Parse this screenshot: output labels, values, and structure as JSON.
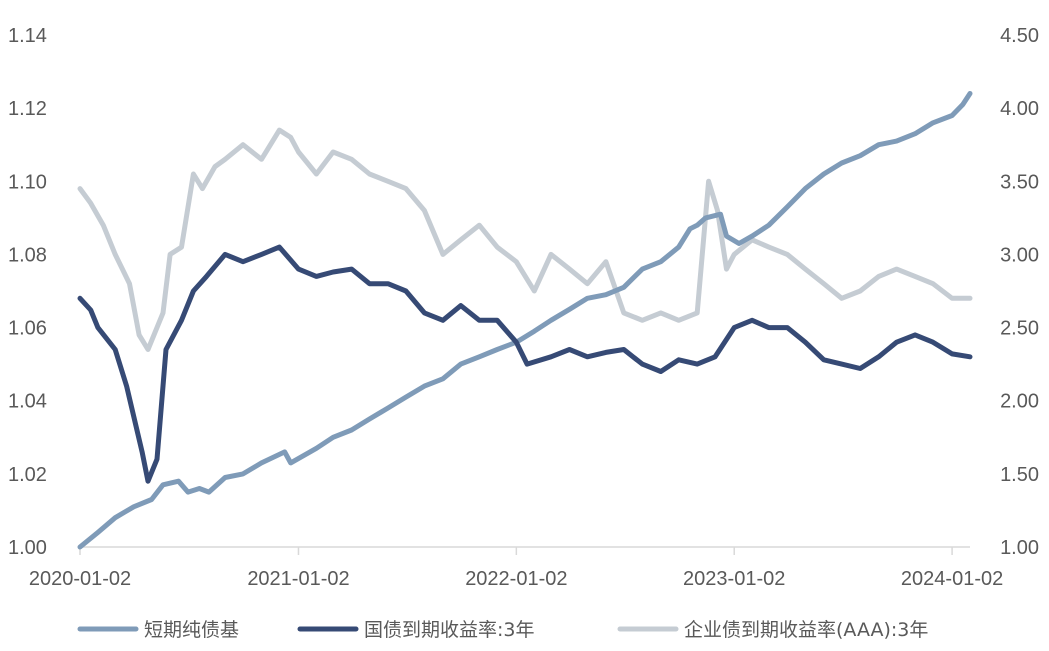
{
  "chart_data": {
    "type": "line",
    "x_ticks": [
      "2020-01-02",
      "2021-01-02",
      "2022-01-02",
      "2023-01-02",
      "2024-01-02"
    ],
    "y_left": {
      "ticks": [
        "1.00",
        "1.02",
        "1.04",
        "1.06",
        "1.08",
        "1.10",
        "1.12",
        "1.14"
      ],
      "range": [
        1.0,
        1.14
      ]
    },
    "y_right": {
      "ticks": [
        "1.00",
        "1.50",
        "2.00",
        "2.50",
        "3.00",
        "3.50",
        "4.00",
        "4.50"
      ],
      "range": [
        1.0,
        4.5
      ]
    },
    "grid": false,
    "legend_position": "bottom",
    "series": [
      {
        "name": "短期纯债基",
        "axis": "left",
        "color": "#7f9bb8",
        "points": [
          [
            "2020-01-02",
            1.0
          ],
          [
            "2020-02-01",
            1.004
          ],
          [
            "2020-03-01",
            1.008
          ],
          [
            "2020-04-01",
            1.011
          ],
          [
            "2020-05-01",
            1.013
          ],
          [
            "2020-05-20",
            1.017
          ],
          [
            "2020-06-15",
            1.018
          ],
          [
            "2020-07-01",
            1.015
          ],
          [
            "2020-07-20",
            1.016
          ],
          [
            "2020-08-05",
            1.015
          ],
          [
            "2020-09-01",
            1.019
          ],
          [
            "2020-10-01",
            1.02
          ],
          [
            "2020-11-01",
            1.023
          ],
          [
            "2020-12-10",
            1.026
          ],
          [
            "2020-12-20",
            1.023
          ],
          [
            "2021-02-01",
            1.027
          ],
          [
            "2021-03-01",
            1.03
          ],
          [
            "2021-04-01",
            1.032
          ],
          [
            "2021-05-01",
            1.035
          ],
          [
            "2021-06-01",
            1.038
          ],
          [
            "2021-07-01",
            1.041
          ],
          [
            "2021-08-01",
            1.044
          ],
          [
            "2021-09-01",
            1.046
          ],
          [
            "2021-10-01",
            1.05
          ],
          [
            "2021-11-01",
            1.052
          ],
          [
            "2021-12-01",
            1.054
          ],
          [
            "2022-01-02",
            1.056
          ],
          [
            "2022-02-01",
            1.059
          ],
          [
            "2022-03-01",
            1.062
          ],
          [
            "2022-04-01",
            1.065
          ],
          [
            "2022-05-01",
            1.068
          ],
          [
            "2022-06-01",
            1.069
          ],
          [
            "2022-07-01",
            1.071
          ],
          [
            "2022-08-01",
            1.076
          ],
          [
            "2022-09-01",
            1.078
          ],
          [
            "2022-10-01",
            1.082
          ],
          [
            "2022-10-20",
            1.087
          ],
          [
            "2022-11-01",
            1.088
          ],
          [
            "2022-11-15",
            1.09
          ],
          [
            "2022-12-10",
            1.091
          ],
          [
            "2022-12-20",
            1.085
          ],
          [
            "2023-01-10",
            1.083
          ],
          [
            "2023-02-01",
            1.085
          ],
          [
            "2023-03-01",
            1.088
          ],
          [
            "2023-04-01",
            1.093
          ],
          [
            "2023-05-01",
            1.098
          ],
          [
            "2023-06-01",
            1.102
          ],
          [
            "2023-07-01",
            1.105
          ],
          [
            "2023-08-01",
            1.107
          ],
          [
            "2023-09-01",
            1.11
          ],
          [
            "2023-10-01",
            1.111
          ],
          [
            "2023-11-01",
            1.113
          ],
          [
            "2023-12-01",
            1.116
          ],
          [
            "2024-01-02",
            1.118
          ],
          [
            "2024-01-20",
            1.121
          ],
          [
            "2024-02-01",
            1.124
          ]
        ]
      },
      {
        "name": "国债到期收益率:3年",
        "axis": "right",
        "color": "#364a75",
        "points": [
          [
            "2020-01-02",
            2.7
          ],
          [
            "2020-01-20",
            2.62
          ],
          [
            "2020-02-01",
            2.5
          ],
          [
            "2020-03-01",
            2.35
          ],
          [
            "2020-03-20",
            2.1
          ],
          [
            "2020-04-15",
            1.65
          ],
          [
            "2020-04-25",
            1.45
          ],
          [
            "2020-05-10",
            1.6
          ],
          [
            "2020-05-25",
            2.35
          ],
          [
            "2020-06-20",
            2.55
          ],
          [
            "2020-07-10",
            2.75
          ],
          [
            "2020-08-01",
            2.85
          ],
          [
            "2020-09-01",
            3.0
          ],
          [
            "2020-10-01",
            2.95
          ],
          [
            "2020-11-01",
            3.0
          ],
          [
            "2020-12-01",
            3.05
          ],
          [
            "2021-01-02",
            2.9
          ],
          [
            "2021-02-01",
            2.85
          ],
          [
            "2021-03-01",
            2.88
          ],
          [
            "2021-04-01",
            2.9
          ],
          [
            "2021-05-01",
            2.8
          ],
          [
            "2021-06-01",
            2.8
          ],
          [
            "2021-07-01",
            2.75
          ],
          [
            "2021-08-01",
            2.6
          ],
          [
            "2021-09-01",
            2.55
          ],
          [
            "2021-10-01",
            2.65
          ],
          [
            "2021-11-01",
            2.55
          ],
          [
            "2021-12-01",
            2.55
          ],
          [
            "2022-01-02",
            2.4
          ],
          [
            "2022-01-20",
            2.25
          ],
          [
            "2022-03-01",
            2.3
          ],
          [
            "2022-04-01",
            2.35
          ],
          [
            "2022-05-01",
            2.3
          ],
          [
            "2022-06-01",
            2.33
          ],
          [
            "2022-07-01",
            2.35
          ],
          [
            "2022-08-01",
            2.25
          ],
          [
            "2022-09-01",
            2.2
          ],
          [
            "2022-10-01",
            2.28
          ],
          [
            "2022-11-01",
            2.25
          ],
          [
            "2022-12-01",
            2.3
          ],
          [
            "2023-01-02",
            2.5
          ],
          [
            "2023-02-01",
            2.55
          ],
          [
            "2023-03-01",
            2.5
          ],
          [
            "2023-04-01",
            2.5
          ],
          [
            "2023-05-01",
            2.4
          ],
          [
            "2023-06-01",
            2.28
          ],
          [
            "2023-07-01",
            2.25
          ],
          [
            "2023-08-01",
            2.22
          ],
          [
            "2023-09-01",
            2.3
          ],
          [
            "2023-10-01",
            2.4
          ],
          [
            "2023-11-01",
            2.45
          ],
          [
            "2023-12-01",
            2.4
          ],
          [
            "2024-01-02",
            2.32
          ],
          [
            "2024-02-01",
            2.3
          ]
        ]
      },
      {
        "name": "企业债到期收益率(AAA):3年",
        "axis": "right",
        "color": "#c5ccd3",
        "points": [
          [
            "2020-01-02",
            3.45
          ],
          [
            "2020-01-20",
            3.35
          ],
          [
            "2020-02-10",
            3.2
          ],
          [
            "2020-03-01",
            3.0
          ],
          [
            "2020-03-25",
            2.8
          ],
          [
            "2020-04-10",
            2.45
          ],
          [
            "2020-04-25",
            2.35
          ],
          [
            "2020-05-10",
            2.5
          ],
          [
            "2020-05-20",
            2.6
          ],
          [
            "2020-06-01",
            3.0
          ],
          [
            "2020-06-20",
            3.05
          ],
          [
            "2020-07-10",
            3.55
          ],
          [
            "2020-07-25",
            3.45
          ],
          [
            "2020-08-15",
            3.6
          ],
          [
            "2020-09-01",
            3.65
          ],
          [
            "2020-10-01",
            3.75
          ],
          [
            "2020-11-01",
            3.65
          ],
          [
            "2020-12-01",
            3.85
          ],
          [
            "2020-12-20",
            3.8
          ],
          [
            "2021-01-02",
            3.7
          ],
          [
            "2021-02-01",
            3.55
          ],
          [
            "2021-03-01",
            3.7
          ],
          [
            "2021-04-01",
            3.65
          ],
          [
            "2021-05-01",
            3.55
          ],
          [
            "2021-06-01",
            3.5
          ],
          [
            "2021-07-01",
            3.45
          ],
          [
            "2021-08-01",
            3.3
          ],
          [
            "2021-09-01",
            3.0
          ],
          [
            "2021-10-01",
            3.1
          ],
          [
            "2021-11-01",
            3.2
          ],
          [
            "2021-12-01",
            3.05
          ],
          [
            "2022-01-02",
            2.95
          ],
          [
            "2022-02-01",
            2.75
          ],
          [
            "2022-03-01",
            3.0
          ],
          [
            "2022-04-01",
            2.9
          ],
          [
            "2022-05-01",
            2.8
          ],
          [
            "2022-06-01",
            2.95
          ],
          [
            "2022-07-01",
            2.6
          ],
          [
            "2022-08-01",
            2.55
          ],
          [
            "2022-09-01",
            2.6
          ],
          [
            "2022-10-01",
            2.55
          ],
          [
            "2022-11-01",
            2.6
          ],
          [
            "2022-11-20",
            3.5
          ],
          [
            "2022-12-05",
            3.3
          ],
          [
            "2022-12-20",
            2.9
          ],
          [
            "2023-01-02",
            3.0
          ],
          [
            "2023-02-01",
            3.1
          ],
          [
            "2023-03-01",
            3.05
          ],
          [
            "2023-04-01",
            3.0
          ],
          [
            "2023-05-01",
            2.9
          ],
          [
            "2023-06-01",
            2.8
          ],
          [
            "2023-07-01",
            2.7
          ],
          [
            "2023-08-01",
            2.75
          ],
          [
            "2023-09-01",
            2.85
          ],
          [
            "2023-10-01",
            2.9
          ],
          [
            "2023-11-01",
            2.85
          ],
          [
            "2023-12-01",
            2.8
          ],
          [
            "2024-01-02",
            2.7
          ],
          [
            "2024-02-01",
            2.7
          ]
        ]
      }
    ]
  }
}
